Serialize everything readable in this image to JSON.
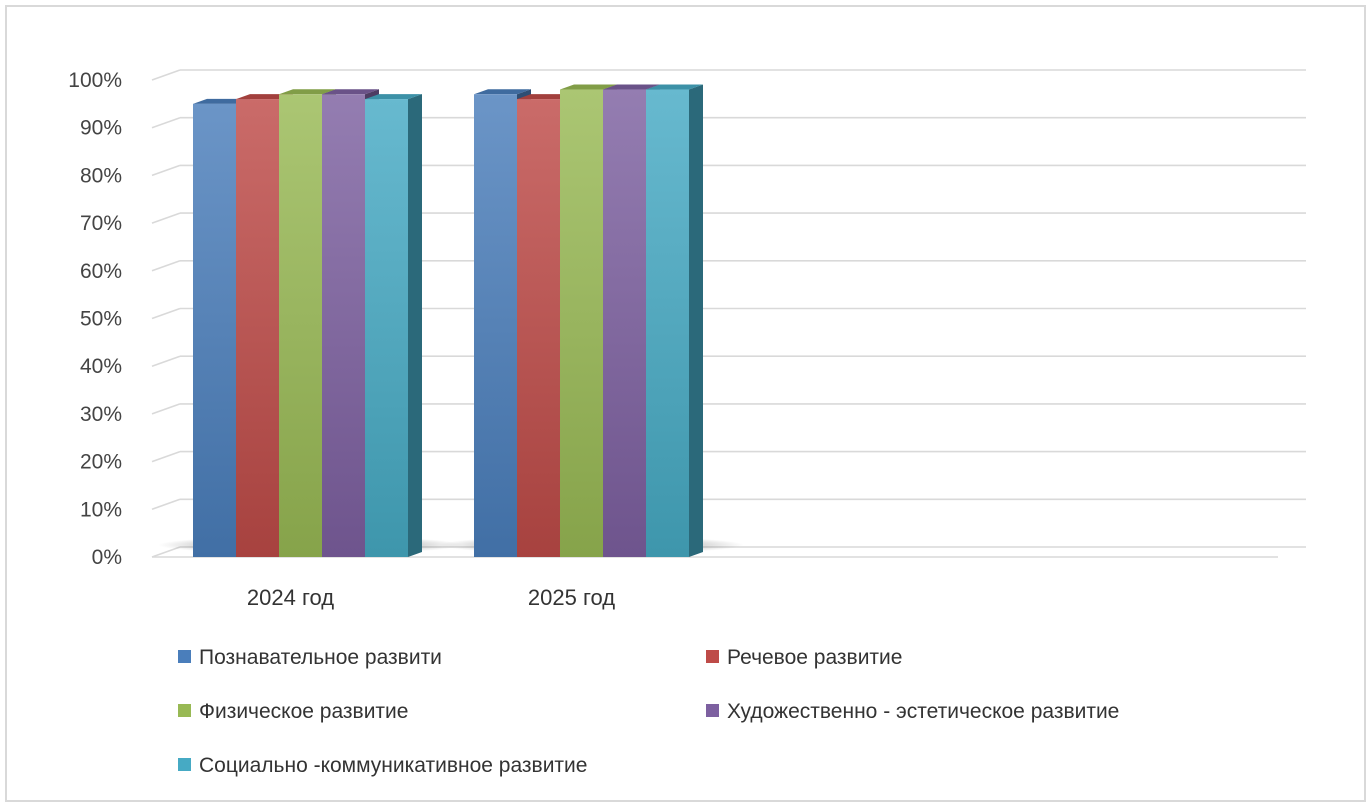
{
  "chart_data": {
    "type": "bar",
    "style": "3d-clustered-column",
    "categories": [
      "2024 год",
      "2025 год"
    ],
    "series": [
      {
        "name": "Познавательное развити",
        "values": [
          0.95,
          0.97
        ],
        "color": "#4a7ebb"
      },
      {
        "name": "Речевое развитие",
        "values": [
          0.96,
          0.96
        ],
        "color": "#be4b48"
      },
      {
        "name": "Физическое развитие",
        "values": [
          0.97,
          0.98
        ],
        "color": "#98b954"
      },
      {
        "name": "Художественно - эстетическое развитие",
        "values": [
          0.97,
          0.98
        ],
        "color": "#7d60a0"
      },
      {
        "name": "Социально -коммуникативное развитие",
        "values": [
          0.96,
          0.98
        ],
        "color": "#46aac4"
      }
    ],
    "y_ticks": [
      "0%",
      "10%",
      "20%",
      "30%",
      "40%",
      "50%",
      "60%",
      "70%",
      "80%",
      "90%",
      "100%"
    ],
    "ylim": [
      0,
      1
    ],
    "grid": true,
    "legend_position": "bottom",
    "title": "",
    "xlabel": "",
    "ylabel": ""
  }
}
